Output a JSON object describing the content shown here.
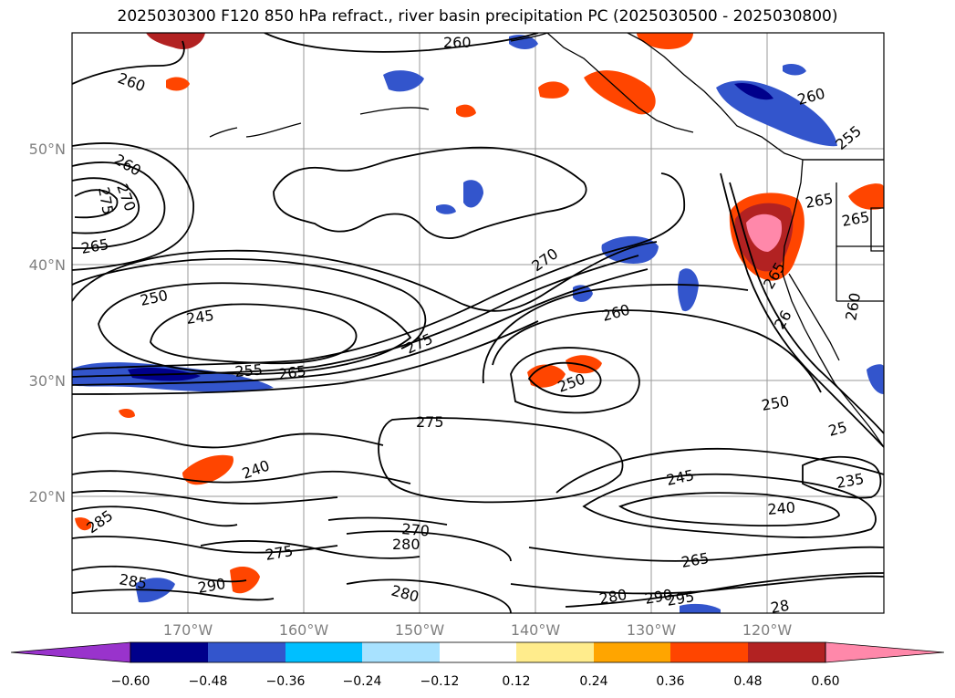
{
  "title": "2025030300 F120 850 hPa refract., river basin precipitation PC (2025030500 - 2025030800)",
  "lat_labels": [
    "50°N",
    "40°N",
    "30°N",
    "20°N"
  ],
  "lon_labels": [
    "170°W",
    "160°W",
    "150°W",
    "140°W",
    "130°W",
    "120°W"
  ],
  "contour_labels": [
    "260",
    "260",
    "260",
    "260",
    "255",
    "270",
    "275",
    "265",
    "250",
    "245",
    "255",
    "265",
    "275",
    "270",
    "260",
    "250",
    "275",
    "265",
    "265",
    "260",
    "250",
    "245",
    "240",
    "240",
    "235",
    "25",
    "285",
    "285",
    "290",
    "275",
    "270",
    "280",
    "280",
    "265",
    "280",
    "290",
    "295",
    "28",
    "26",
    "265"
  ],
  "colorbar": {
    "tick_labels": [
      "−0.60",
      "−0.48",
      "−0.36",
      "−0.24",
      "−0.12",
      "0.12",
      "0.24",
      "0.36",
      "0.48",
      "0.60"
    ],
    "colors": [
      "#9933cc",
      "#00008b",
      "#3355cc",
      "#00bfff",
      "#a8e2ff",
      "#ffffff",
      "#ffec8c",
      "#ffa500",
      "#ff4500",
      "#b22222",
      "#ff88aa"
    ]
  }
}
